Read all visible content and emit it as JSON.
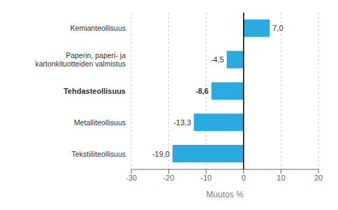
{
  "chart_data": {
    "type": "bar",
    "orientation": "horizontal",
    "categories": [
      "Tekstiiliteollisuus",
      "Metalliteollisuus",
      "Tehdasteollisuus",
      "Paperin, paperi- ja kartonkituotteiden valmistus",
      "Kemianteollisuus"
    ],
    "values": [
      -19.0,
      -13.3,
      -8.6,
      -4.5,
      7.0
    ],
    "value_labels": [
      "-19,0",
      "-13,3",
      "-8,6",
      "-4,5",
      "7,0"
    ],
    "data_labels": true,
    "color": "#29abe2",
    "xlabel": "Muutos %",
    "xlim": [
      -30,
      20
    ],
    "xticks": [
      -30,
      -20,
      -10,
      0,
      10,
      20
    ],
    "grid": true
  }
}
